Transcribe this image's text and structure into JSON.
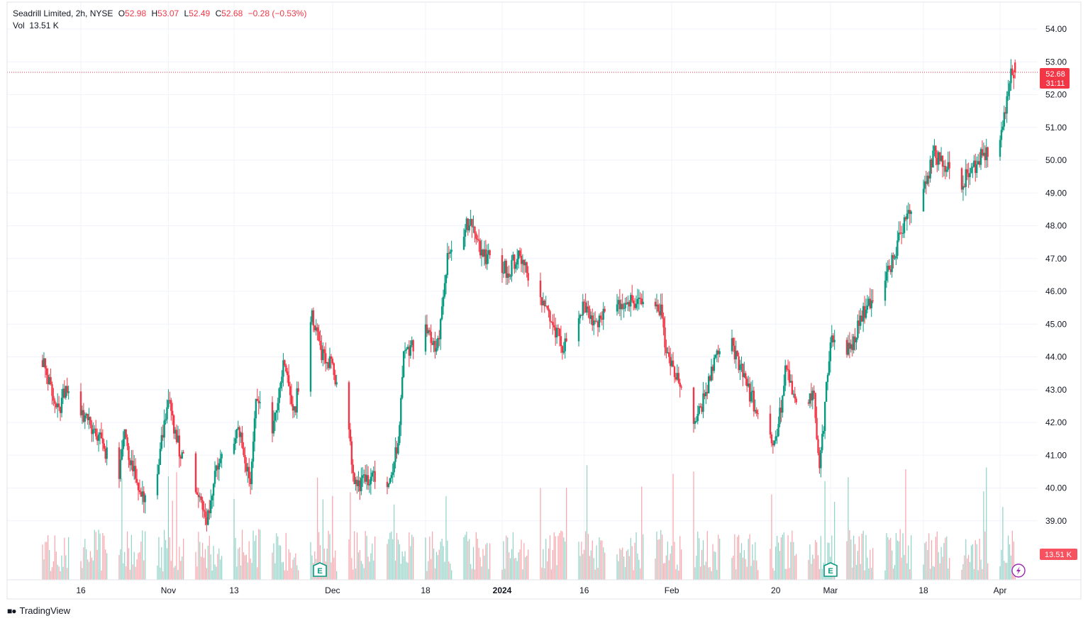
{
  "legend": {
    "symbol": "Seadrill Limited, 2h, NYSE",
    "o_label": "O",
    "o_value": "52.98",
    "h_label": "H",
    "h_value": "53.07",
    "l_label": "L",
    "l_value": "52.49",
    "c_label": "C",
    "c_value": "52.68",
    "change": "−0.28 (−0.53%)",
    "vol_label": "Vol",
    "vol_value": "13.51 K"
  },
  "price_tag": {
    "price": "52.68",
    "countdown": "31:11"
  },
  "volume_tag": "13.51 K",
  "markers": {
    "earnings_label": "E",
    "earnings_icon": "earnings-icon",
    "flash_icon": "lightning-icon"
  },
  "footer": {
    "brand": "TradingView",
    "logo": "tradingview-logo-icon"
  },
  "colors": {
    "up": "#089981",
    "down": "#f23645",
    "grid": "#f0f3fa",
    "text": "#131722"
  },
  "chart_data": {
    "type": "candlestick",
    "title": "Seadrill Limited, 2h, NYSE",
    "ylim": [
      38.5,
      54.3
    ],
    "y_ticks": [
      "54.00",
      "53.00",
      "52.00",
      "51.00",
      "50.00",
      "49.00",
      "48.00",
      "47.00",
      "46.00",
      "45.00",
      "44.00",
      "43.00",
      "42.00",
      "41.00",
      "40.00",
      "39.00"
    ],
    "x_tick_labels": [
      "16",
      "Nov",
      "13",
      "Dec",
      "18",
      "2024",
      "16",
      "Feb",
      "20",
      "Mar",
      "18",
      "Apr"
    ],
    "bold_x_ticks": [
      "2024"
    ],
    "last_price": 52.68,
    "earnings_markers": 2,
    "anchors": [
      [
        "Oct 9",
        43.9
      ],
      [
        "Oct 12",
        42.2
      ],
      [
        "Oct 13",
        43.0
      ],
      [
        "Oct 17",
        42.1
      ],
      [
        "Oct 19",
        41.6
      ],
      [
        "Oct 23",
        40.3
      ],
      [
        "Oct 24",
        41.6
      ],
      [
        "Oct 27",
        39.6
      ],
      [
        "Oct 30",
        40.6
      ],
      [
        "Nov 1",
        42.6
      ],
      [
        "Nov 3",
        41.2
      ],
      [
        "Nov 6",
        40.0
      ],
      [
        "Nov 8",
        39.0
      ],
      [
        "Nov 10",
        40.8
      ],
      [
        "Nov 14",
        41.7
      ],
      [
        "Nov 16",
        40.0
      ],
      [
        "Nov 17",
        42.9
      ],
      [
        "Nov 20",
        41.9
      ],
      [
        "Nov 22",
        43.8
      ],
      [
        "Nov 24",
        42.3
      ],
      [
        "Nov 27",
        45.3
      ],
      [
        "Nov 29",
        44.1
      ],
      [
        "Dec 1",
        43.8
      ],
      [
        "Dec 4",
        41.6
      ],
      [
        "Dec 5",
        40.1
      ],
      [
        "Dec 8",
        40.3
      ],
      [
        "Dec 11",
        40.3
      ],
      [
        "Dec 13",
        41.2
      ],
      [
        "Dec 14",
        43.9
      ],
      [
        "Dec 18",
        44.9
      ],
      [
        "Dec 20",
        44.0
      ],
      [
        "Dec 22",
        46.9
      ],
      [
        "Dec 26",
        48.2
      ],
      [
        "Dec 28",
        47.2
      ],
      [
        "Jan 2",
        46.6
      ],
      [
        "Jan 4",
        47.1
      ],
      [
        "Jan 10",
        45.2
      ],
      [
        "Jan 12",
        44.3
      ],
      [
        "Jan 16",
        45.6
      ],
      [
        "Jan 18",
        44.9
      ],
      [
        "Jan 22",
        45.7
      ],
      [
        "Jan 25",
        45.7
      ],
      [
        "Jan 30",
        45.4
      ],
      [
        "Jan 31",
        44.1
      ],
      [
        "Feb 2",
        43.4
      ],
      [
        "Feb 5",
        41.7
      ],
      [
        "Feb 7",
        42.8
      ],
      [
        "Feb 9",
        43.9
      ],
      [
        "Feb 12",
        44.4
      ],
      [
        "Feb 14",
        43.4
      ],
      [
        "Feb 16",
        42.6
      ],
      [
        "Feb 20",
        41.3
      ],
      [
        "Feb 22",
        43.8
      ],
      [
        "Feb 23",
        42.8
      ],
      [
        "Feb 27",
        42.7
      ],
      [
        "Feb 28",
        40.7
      ],
      [
        "Feb 29",
        42.4
      ],
      [
        "Mar 1",
        44.7
      ],
      [
        "Mar 5",
        44.2
      ],
      [
        "Mar 6",
        45.0
      ],
      [
        "Mar 8",
        45.6
      ],
      [
        "Mar 11",
        46.4
      ],
      [
        "Mar 13",
        47.3
      ],
      [
        "Mar 15",
        48.5
      ],
      [
        "Mar 18",
        49.2
      ],
      [
        "Mar 20",
        50.2
      ],
      [
        "Mar 22",
        49.8
      ],
      [
        "Mar 25",
        49.3
      ],
      [
        "Mar 27",
        49.7
      ],
      [
        "Mar 29",
        50.2
      ],
      [
        "Apr 1",
        50.8
      ],
      [
        "Apr 2",
        51.5
      ],
      [
        "Apr 3",
        52.7
      ]
    ],
    "last_candle": {
      "open": 52.98,
      "high": 53.07,
      "low": 52.49,
      "close": 52.68,
      "volume": "13.51 K"
    }
  }
}
